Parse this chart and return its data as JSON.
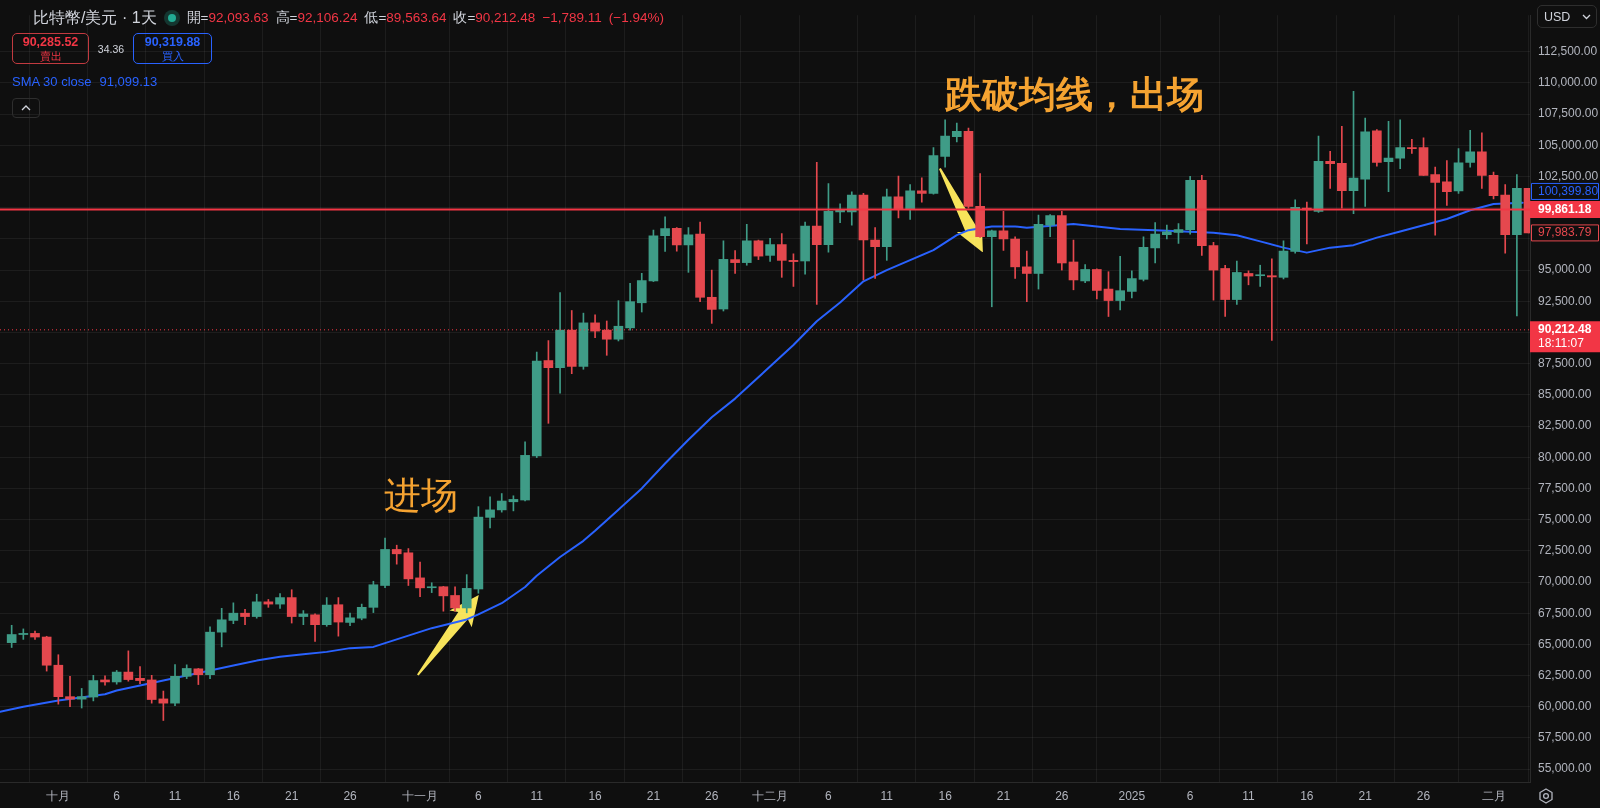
{
  "chart_data": {
    "type": "candlestick",
    "title": "比特幣/美元 · 1天",
    "subtitle": "開=92,093.63 高=92,106.24 低=89,563.64 收=90,212.48 −1,789.11 (−1.94%)",
    "x": [
      "2024-09-27",
      "2024-09-28",
      "2024-09-29",
      "2024-09-30",
      "2024-10-01",
      "2024-10-02",
      "2024-10-03",
      "2024-10-04",
      "2024-10-05",
      "2024-10-06",
      "2024-10-07",
      "2024-10-08",
      "2024-10-09",
      "2024-10-10",
      "2024-10-11",
      "2024-10-12",
      "2024-10-13",
      "2024-10-14",
      "2024-10-15",
      "2024-10-16",
      "2024-10-17",
      "2024-10-18",
      "2024-10-19",
      "2024-10-20",
      "2024-10-21",
      "2024-10-22",
      "2024-10-23",
      "2024-10-24",
      "2024-10-25",
      "2024-10-26",
      "2024-10-27",
      "2024-10-28",
      "2024-10-29",
      "2024-10-30",
      "2024-10-31",
      "2024-11-01",
      "2024-11-02",
      "2024-11-03",
      "2024-11-04",
      "2024-11-05",
      "2024-11-06",
      "2024-11-07",
      "2024-11-08",
      "2024-11-09",
      "2024-11-10",
      "2024-11-11",
      "2024-11-12",
      "2024-11-13",
      "2024-11-14",
      "2024-11-15",
      "2024-11-16",
      "2024-11-17",
      "2024-11-18",
      "2024-11-19",
      "2024-11-20",
      "2024-11-21",
      "2024-11-22",
      "2024-11-23",
      "2024-11-24",
      "2024-11-25",
      "2024-11-26",
      "2024-11-27",
      "2024-11-28",
      "2024-11-29",
      "2024-11-30",
      "2024-12-01",
      "2024-12-02",
      "2024-12-03",
      "2024-12-04",
      "2024-12-05",
      "2024-12-06",
      "2024-12-07",
      "2024-12-08",
      "2024-12-09",
      "2024-12-10",
      "2024-12-11",
      "2024-12-12",
      "2024-12-13",
      "2024-12-14",
      "2024-12-15",
      "2024-12-16",
      "2024-12-17",
      "2024-12-18",
      "2024-12-19",
      "2024-12-20",
      "2024-12-21",
      "2024-12-22",
      "2024-12-23",
      "2024-12-24",
      "2024-12-25",
      "2024-12-26",
      "2024-12-27",
      "2024-12-28",
      "2024-12-29",
      "2024-12-30",
      "2024-12-31",
      "2025-01-01",
      "2025-01-02",
      "2025-01-03",
      "2025-01-04",
      "2025-01-05",
      "2025-01-06",
      "2025-01-07",
      "2025-01-08",
      "2025-01-09",
      "2025-01-10",
      "2025-01-11",
      "2025-01-12",
      "2025-01-13",
      "2025-01-14",
      "2025-01-15",
      "2025-01-16",
      "2025-01-17",
      "2025-01-18",
      "2025-01-19",
      "2025-01-20",
      "2025-01-21",
      "2025-01-22",
      "2025-01-23",
      "2025-01-24",
      "2025-01-25",
      "2025-01-26",
      "2025-01-27",
      "2025-01-28",
      "2025-01-29",
      "2025-01-30",
      "2025-01-31",
      "2025-02-01",
      "2025-02-02",
      "2025-02-03",
      "2025-02-04"
    ],
    "ohlc": [
      [
        65140,
        66530,
        64750,
        65790
      ],
      [
        65790,
        66240,
        65400,
        65880
      ],
      [
        65880,
        66060,
        65400,
        65590
      ],
      [
        65590,
        65650,
        62860,
        63330
      ],
      [
        63330,
        64170,
        60210,
        60810
      ],
      [
        60810,
        62440,
        60000,
        60610
      ],
      [
        60610,
        61470,
        59900,
        60810
      ],
      [
        60780,
        62520,
        60470,
        62100
      ],
      [
        62150,
        62470,
        61730,
        61990
      ],
      [
        61990,
        62910,
        61810,
        62780
      ],
      [
        62780,
        64480,
        62050,
        62180
      ],
      [
        62280,
        63230,
        61860,
        62100
      ],
      [
        62150,
        62520,
        60290,
        60580
      ],
      [
        60630,
        61260,
        58900,
        60290
      ],
      [
        60290,
        63380,
        60080,
        62440
      ],
      [
        62440,
        63360,
        62260,
        63070
      ],
      [
        63040,
        63070,
        61780,
        62570
      ],
      [
        62570,
        66400,
        62260,
        65980
      ],
      [
        65980,
        67890,
        64800,
        66970
      ],
      [
        66920,
        68330,
        66660,
        67500
      ],
      [
        67500,
        67810,
        66580,
        67230
      ],
      [
        67230,
        69020,
        67100,
        68410
      ],
      [
        68410,
        68600,
        67970,
        68230
      ],
      [
        68230,
        69070,
        67890,
        68750
      ],
      [
        68750,
        69380,
        66710,
        67230
      ],
      [
        67230,
        67710,
        66580,
        67440
      ],
      [
        67370,
        67440,
        65240,
        66580
      ],
      [
        66580,
        68750,
        66450,
        68150
      ],
      [
        68180,
        68750,
        65660,
        66790
      ],
      [
        66760,
        67500,
        66500,
        67130
      ],
      [
        67100,
        68230,
        66970,
        67970
      ],
      [
        67970,
        70060,
        67550,
        69780
      ],
      [
        69720,
        73520,
        69540,
        72610
      ],
      [
        72610,
        72950,
        71430,
        72260
      ],
      [
        72340,
        72680,
        69720,
        70250
      ],
      [
        70330,
        71600,
        68820,
        69530
      ],
      [
        69540,
        69940,
        69150,
        69600
      ],
      [
        69620,
        69650,
        67660,
        68890
      ],
      [
        68920,
        69620,
        67660,
        67920
      ],
      [
        67920,
        70590,
        67530,
        69490
      ],
      [
        69440,
        76040,
        69100,
        75200
      ],
      [
        75180,
        76830,
        74340,
        75780
      ],
      [
        75780,
        77090,
        75600,
        76490
      ],
      [
        76430,
        76910,
        75700,
        76620
      ],
      [
        76570,
        81230,
        76490,
        80150
      ],
      [
        80100,
        88430,
        79970,
        87700
      ],
      [
        87750,
        89350,
        82720,
        87180
      ],
      [
        87180,
        93200,
        85130,
        90190
      ],
      [
        90190,
        91760,
        86700,
        87280
      ],
      [
        87280,
        91550,
        87050,
        90770
      ],
      [
        90770,
        91420,
        89590,
        90110
      ],
      [
        90190,
        90920,
        88170,
        89460
      ],
      [
        89460,
        92550,
        89320,
        90500
      ],
      [
        90370,
        93940,
        90190,
        92470
      ],
      [
        92380,
        94740,
        91640,
        94160
      ],
      [
        94130,
        98200,
        94080,
        97750
      ],
      [
        97750,
        99260,
        96490,
        98320
      ],
      [
        98350,
        98400,
        96510,
        97020
      ],
      [
        97020,
        98400,
        94820,
        97830
      ],
      [
        97880,
        98850,
        92460,
        92820
      ],
      [
        92820,
        95000,
        90730,
        91850
      ],
      [
        91880,
        97350,
        91720,
        95860
      ],
      [
        95840,
        96570,
        94730,
        95600
      ],
      [
        95600,
        98660,
        95390,
        97350
      ],
      [
        97350,
        97400,
        95840,
        96120
      ],
      [
        96180,
        97540,
        95700,
        97040
      ],
      [
        97040,
        97930,
        94420,
        95780
      ],
      [
        95780,
        96310,
        93690,
        95680
      ],
      [
        95730,
        98850,
        94680,
        98530
      ],
      [
        98530,
        103640,
        92250,
        97040
      ],
      [
        97040,
        101940,
        96440,
        99710
      ],
      [
        99660,
        100320,
        98800,
        99820
      ],
      [
        99660,
        101280,
        98610,
        101020
      ],
      [
        101020,
        101150,
        94210,
        97410
      ],
      [
        97410,
        98400,
        94340,
        96880
      ],
      [
        96880,
        101490,
        95780,
        100870
      ],
      [
        100870,
        102540,
        99190,
        99840
      ],
      [
        99840,
        101860,
        99060,
        101360
      ],
      [
        101360,
        102390,
        100450,
        101150
      ],
      [
        101150,
        104820,
        101080,
        104170
      ],
      [
        104110,
        107050,
        103250,
        105740
      ],
      [
        105690,
        106790,
        105270,
        106130
      ],
      [
        106130,
        106390,
        99970,
        100110
      ],
      [
        100110,
        102730,
        97620,
        97670
      ],
      [
        97670,
        98200,
        92060,
        98140
      ],
      [
        98140,
        99710,
        96570,
        97490
      ],
      [
        97490,
        97670,
        94340,
        95260
      ],
      [
        95260,
        96520,
        92470,
        94730
      ],
      [
        94730,
        99400,
        93480,
        98660
      ],
      [
        98610,
        99450,
        97670,
        99370
      ],
      [
        99370,
        99710,
        95000,
        95570
      ],
      [
        95650,
        97410,
        93420,
        94210
      ],
      [
        94130,
        95440,
        94000,
        95050
      ],
      [
        95050,
        95100,
        92690,
        93370
      ],
      [
        93480,
        94870,
        91280,
        92560
      ],
      [
        92560,
        96100,
        91800,
        93350
      ],
      [
        93290,
        94940,
        92770,
        94320
      ],
      [
        94260,
        97670,
        94130,
        96830
      ],
      [
        96780,
        98800,
        95570,
        97880
      ],
      [
        97830,
        98610,
        97490,
        98060
      ],
      [
        98010,
        98720,
        97140,
        98250
      ],
      [
        98250,
        102520,
        97880,
        102200
      ],
      [
        102200,
        102590,
        96180,
        96960
      ],
      [
        96960,
        97220,
        92590,
        95000
      ],
      [
        95130,
        95390,
        91280,
        92640
      ],
      [
        92640,
        95730,
        92250,
        94810
      ],
      [
        94730,
        94940,
        93820,
        94520
      ],
      [
        94550,
        95390,
        93690,
        94610
      ],
      [
        94550,
        95910,
        89360,
        94450
      ],
      [
        94420,
        97350,
        94290,
        96520
      ],
      [
        96490,
        100630,
        96360,
        100030
      ],
      [
        99970,
        100450,
        97090,
        99830
      ],
      [
        99710,
        105740,
        99620,
        103710
      ],
      [
        103710,
        104520,
        101550,
        103520
      ],
      [
        103560,
        106520,
        99970,
        101360
      ],
      [
        101360,
        109330,
        99530,
        102380
      ],
      [
        102280,
        107180,
        100100,
        106080
      ],
      [
        106160,
        106260,
        103330,
        103640
      ],
      [
        103690,
        106920,
        101280,
        103980
      ],
      [
        103980,
        107050,
        103120,
        104820
      ],
      [
        104820,
        105480,
        104350,
        104740
      ],
      [
        104820,
        105610,
        102590,
        102590
      ],
      [
        102650,
        103250,
        97800,
        102020
      ],
      [
        102070,
        103770,
        100180,
        101280
      ],
      [
        101340,
        104740,
        101150,
        103590
      ],
      [
        103640,
        106210,
        103250,
        104480
      ],
      [
        104480,
        106000,
        101550,
        102590
      ],
      [
        102590,
        102860,
        100710,
        100970
      ],
      [
        101020,
        101860,
        96360,
        97830
      ],
      [
        97830,
        102650,
        91330,
        101550
      ],
      [
        101550,
        101550,
        97980,
        97980
      ]
    ],
    "colors": [
      "#3f9c87",
      "#3f9c87",
      "#e5484e",
      "#e5484e",
      "#e5484e",
      "#e5484e",
      "#3f9c87",
      "#3f9c87",
      "#e5484e",
      "#3f9c87",
      "#e5484e",
      "#e5484e",
      "#e5484e",
      "#e5484e",
      "#3f9c87",
      "#3f9c87",
      "#e5484e",
      "#3f9c87",
      "#3f9c87",
      "#3f9c87",
      "#e5484e",
      "#3f9c87",
      "#e5484e",
      "#3f9c87",
      "#e5484e",
      "#3f9c87",
      "#e5484e",
      "#3f9c87",
      "#e5484e",
      "#3f9c87",
      "#3f9c87",
      "#3f9c87",
      "#3f9c87",
      "#e5484e",
      "#e5484e",
      "#e5484e",
      "#3f9c87",
      "#e5484e",
      "#e5484e",
      "#3f9c87",
      "#3f9c87",
      "#3f9c87",
      "#3f9c87",
      "#3f9c87",
      "#3f9c87",
      "#3f9c87",
      "#e5484e",
      "#3f9c87",
      "#e5484e",
      "#3f9c87",
      "#e5484e",
      "#e5484e",
      "#3f9c87",
      "#3f9c87",
      "#3f9c87",
      "#3f9c87",
      "#3f9c87",
      "#e5484e",
      "#3f9c87",
      "#e5484e",
      "#e5484e",
      "#3f9c87",
      "#e5484e",
      "#3f9c87",
      "#e5484e",
      "#3f9c87",
      "#e5484e",
      "#e5484e",
      "#3f9c87",
      "#e5484e",
      "#3f9c87",
      "#3f9c87",
      "#3f9c87",
      "#e5484e",
      "#e5484e",
      "#3f9c87",
      "#e5484e",
      "#3f9c87",
      "#e5484e",
      "#3f9c87",
      "#3f9c87",
      "#3f9c87",
      "#e5484e",
      "#e5484e",
      "#3f9c87",
      "#e5484e",
      "#e5484e",
      "#e5484e",
      "#3f9c87",
      "#3f9c87",
      "#e5484e",
      "#e5484e",
      "#3f9c87",
      "#e5484e",
      "#e5484e",
      "#3f9c87",
      "#3f9c87",
      "#3f9c87",
      "#3f9c87",
      "#3f9c87",
      "#3f9c87",
      "#3f9c87",
      "#e5484e",
      "#e5484e",
      "#e5484e",
      "#3f9c87",
      "#e5484e",
      "#3f9c87",
      "#e5484e",
      "#3f9c87",
      "#3f9c87",
      "#e5484e",
      "#3f9c87",
      "#e5484e",
      "#e5484e",
      "#3f9c87",
      "#3f9c87",
      "#e5484e",
      "#3f9c87",
      "#3f9c87",
      "#e5484e",
      "#e5484e",
      "#e5484e",
      "#e5484e",
      "#3f9c87",
      "#3f9c87",
      "#e5484e",
      "#e5484e",
      "#e5484e",
      "#3f9c87",
      "#e5484e"
    ],
    "series": [
      {
        "type": "line",
        "name": "SMA 30 close",
        "color": "#2962ff",
        "x": [
          "2024-09-26",
          "2024-09-28",
          "2024-10-01",
          "2024-10-05",
          "2024-10-06",
          "2024-10-08",
          "2024-10-10",
          "2024-10-16",
          "2024-10-18",
          "2024-10-20",
          "2024-10-22",
          "2024-10-24",
          "2024-10-26",
          "2024-10-28",
          "2024-10-29",
          "2024-10-31",
          "2024-11-02",
          "2024-11-05",
          "2024-11-06",
          "2024-11-08",
          "2024-11-10",
          "2024-11-11",
          "2024-11-13",
          "2024-11-15",
          "2024-11-16",
          "2024-11-18",
          "2024-11-20",
          "2024-11-22",
          "2024-11-24",
          "2024-11-26",
          "2024-11-28",
          "2024-12-03",
          "2024-12-05",
          "2024-12-07",
          "2024-12-09",
          "2024-12-11",
          "2024-12-13",
          "2024-12-15",
          "2024-12-17",
          "2024-12-18",
          "2024-12-20",
          "2024-12-22",
          "2024-12-23",
          "2024-12-27",
          "2024-12-28",
          "2024-12-31",
          "2025-01-03",
          "2025-01-08",
          "2025-01-10",
          "2025-01-12",
          "2025-01-14",
          "2025-01-16",
          "2025-01-18",
          "2025-01-20",
          "2025-01-22",
          "2025-01-24",
          "2025-01-26",
          "2025-01-28",
          "2025-01-30",
          "2025-02-01",
          "2025-02-03T12:00"
        ],
        "values": [
          59600,
          60000,
          60500,
          61000,
          61300,
          61700,
          62100,
          63300,
          63700,
          64000,
          64200,
          64400,
          64700,
          64800,
          65100,
          65700,
          66300,
          67000,
          67400,
          68300,
          69600,
          70500,
          72000,
          73300,
          74100,
          75800,
          77500,
          79500,
          81400,
          83200,
          84700,
          89000,
          90900,
          92400,
          94100,
          95000,
          95800,
          96600,
          97800,
          98200,
          98500,
          98500,
          98400,
          98700,
          98600,
          98300,
          98200,
          98000,
          97800,
          97300,
          96800,
          96400,
          96800,
          97000,
          97600,
          98100,
          98600,
          99100,
          99800,
          100300,
          100400
        ]
      }
    ],
    "xlim": [
      "2024-09-26",
      "2025-02-04T03:00"
    ],
    "xticks": [
      {
        "value": "2024-10-01",
        "label": "十月"
      },
      {
        "value": "2024-10-06",
        "label": "6"
      },
      {
        "value": "2024-10-11",
        "label": "11"
      },
      {
        "value": "2024-10-16",
        "label": "16"
      },
      {
        "value": "2024-10-21",
        "label": "21"
      },
      {
        "value": "2024-10-26",
        "label": "26"
      },
      {
        "value": "2024-11-01",
        "label": "十一月"
      },
      {
        "value": "2024-11-06",
        "label": "6"
      },
      {
        "value": "2024-11-11",
        "label": "11"
      },
      {
        "value": "2024-11-16",
        "label": "16"
      },
      {
        "value": "2024-11-21",
        "label": "21"
      },
      {
        "value": "2024-11-26",
        "label": "26"
      },
      {
        "value": "2024-12-01",
        "label": "十二月"
      },
      {
        "value": "2024-12-06",
        "label": "6"
      },
      {
        "value": "2024-12-11",
        "label": "11"
      },
      {
        "value": "2024-12-16",
        "label": "16"
      },
      {
        "value": "2024-12-21",
        "label": "21"
      },
      {
        "value": "2024-12-26",
        "label": "26"
      },
      {
        "value": "2025-01-01",
        "label": "2025"
      },
      {
        "value": "2025-01-06",
        "label": "6"
      },
      {
        "value": "2025-01-11",
        "label": "11"
      },
      {
        "value": "2025-01-16",
        "label": "16"
      },
      {
        "value": "2025-01-21",
        "label": "21"
      },
      {
        "value": "2025-01-26",
        "label": "26"
      },
      {
        "value": "2025-02-01",
        "label": "二月"
      }
    ],
    "ylim": [
      53970,
      115430
    ],
    "yticks": [
      {
        "value": 55000,
        "label": "55,000.00"
      },
      {
        "value": 57500,
        "label": "57,500.00"
      },
      {
        "value": 60000,
        "label": "60,000.00"
      },
      {
        "value": 62500,
        "label": "62,500.00"
      },
      {
        "value": 65000,
        "label": "65,000.00"
      },
      {
        "value": 67500,
        "label": "67,500.00"
      },
      {
        "value": 70000,
        "label": "70,000.00"
      },
      {
        "value": 72500,
        "label": "72,500.00"
      },
      {
        "value": 75000,
        "label": "75,000.00"
      },
      {
        "value": 77500,
        "label": "77,500.00"
      },
      {
        "value": 80000,
        "label": "80,000.00"
      },
      {
        "value": 82500,
        "label": "82,500.00"
      },
      {
        "value": 85000,
        "label": "85,000.00"
      },
      {
        "value": 87500,
        "label": "87,500.00"
      },
      {
        "value": 90000,
        "label": null
      },
      {
        "value": 92500,
        "label": "92,500.00"
      },
      {
        "value": 95000,
        "label": "95,000.00"
      },
      {
        "value": 97500,
        "label": null
      },
      {
        "value": 100000,
        "label": null
      },
      {
        "value": 102500,
        "label": "102,500.00"
      },
      {
        "value": 105000,
        "label": "105,000.00"
      },
      {
        "value": 107500,
        "label": "107,500.00"
      },
      {
        "value": 110000,
        "label": "110,000.00"
      },
      {
        "value": 112500,
        "label": "112,500.00"
      }
    ],
    "grid": true,
    "legend": "top left",
    "ref_lines": [
      {
        "axis": "y",
        "value": 99861.18,
        "label": "99,861.18",
        "color": "#f23645"
      },
      {
        "axis": "y",
        "value": 90212.48,
        "label": "90,212.48",
        "color": "#f23645",
        "line_style": "dotted"
      }
    ],
    "annotations": [
      "90,285.52",
      "賣出",
      "34.36",
      "90,319.88",
      "買入",
      "91,099.13",
      "USD",
      "18:11:07",
      "进场",
      "跌破均线，出场",
      "100,399.80",
      "97,983.79"
    ]
  }
}
